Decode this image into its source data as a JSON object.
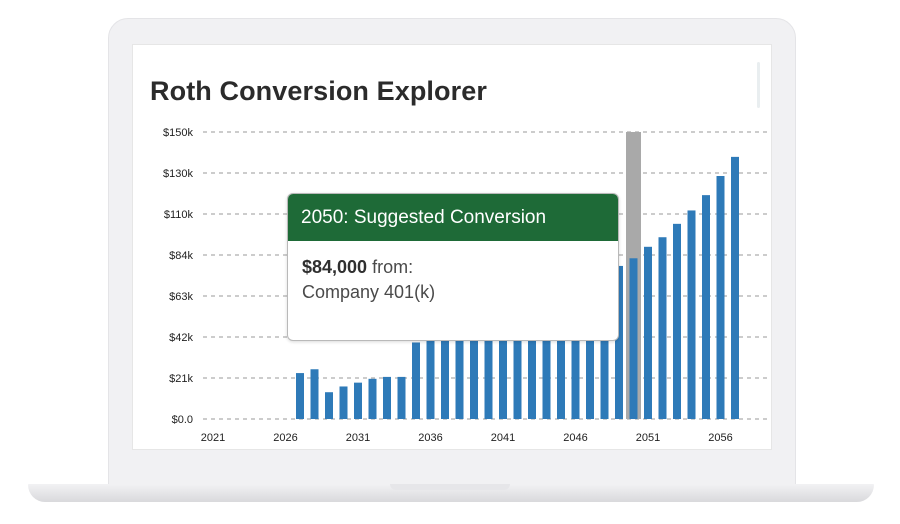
{
  "chart_data": {
    "type": "bar",
    "title": "Roth Conversion Explorer",
    "y_ticks": [
      "$0.0",
      "$21k",
      "$42k",
      "$63k",
      "$84k",
      "$110k",
      "$130k",
      "$150k"
    ],
    "x_ticks": [
      "2021",
      "2026",
      "2031",
      "2036",
      "2041",
      "2046",
      "2051",
      "2056"
    ],
    "x_range": [
      2021,
      2057
    ],
    "ylim": [
      0,
      150000
    ],
    "grid": true,
    "bar_color": "#2e7ab8",
    "highlight_color": "#a9a9a9",
    "highlighted_year": 2050,
    "years": [
      2027,
      2028,
      2029,
      2030,
      2031,
      2032,
      2033,
      2034,
      2035,
      2036,
      2037,
      2038,
      2039,
      2040,
      2041,
      2042,
      2043,
      2044,
      2045,
      2046,
      2047,
      2048,
      2049,
      2050,
      2051,
      2052,
      2053,
      2054,
      2055,
      2056,
      2057
    ],
    "values": [
      24000,
      26000,
      14000,
      17000,
      19000,
      21000,
      22000,
      22000,
      40000,
      42000,
      42000,
      42000,
      42000,
      42000,
      42000,
      42000,
      42000,
      42000,
      42000,
      42000,
      42000,
      42000,
      80000,
      84000,
      90000,
      95000,
      102000,
      109000,
      117000,
      127000,
      137000
    ]
  },
  "tooltip": {
    "header": "2050: Suggested Conversion",
    "amount": "$84,000",
    "from_text": "from:",
    "source": "Company 401(k)",
    "header_color": "#1e6a37"
  }
}
